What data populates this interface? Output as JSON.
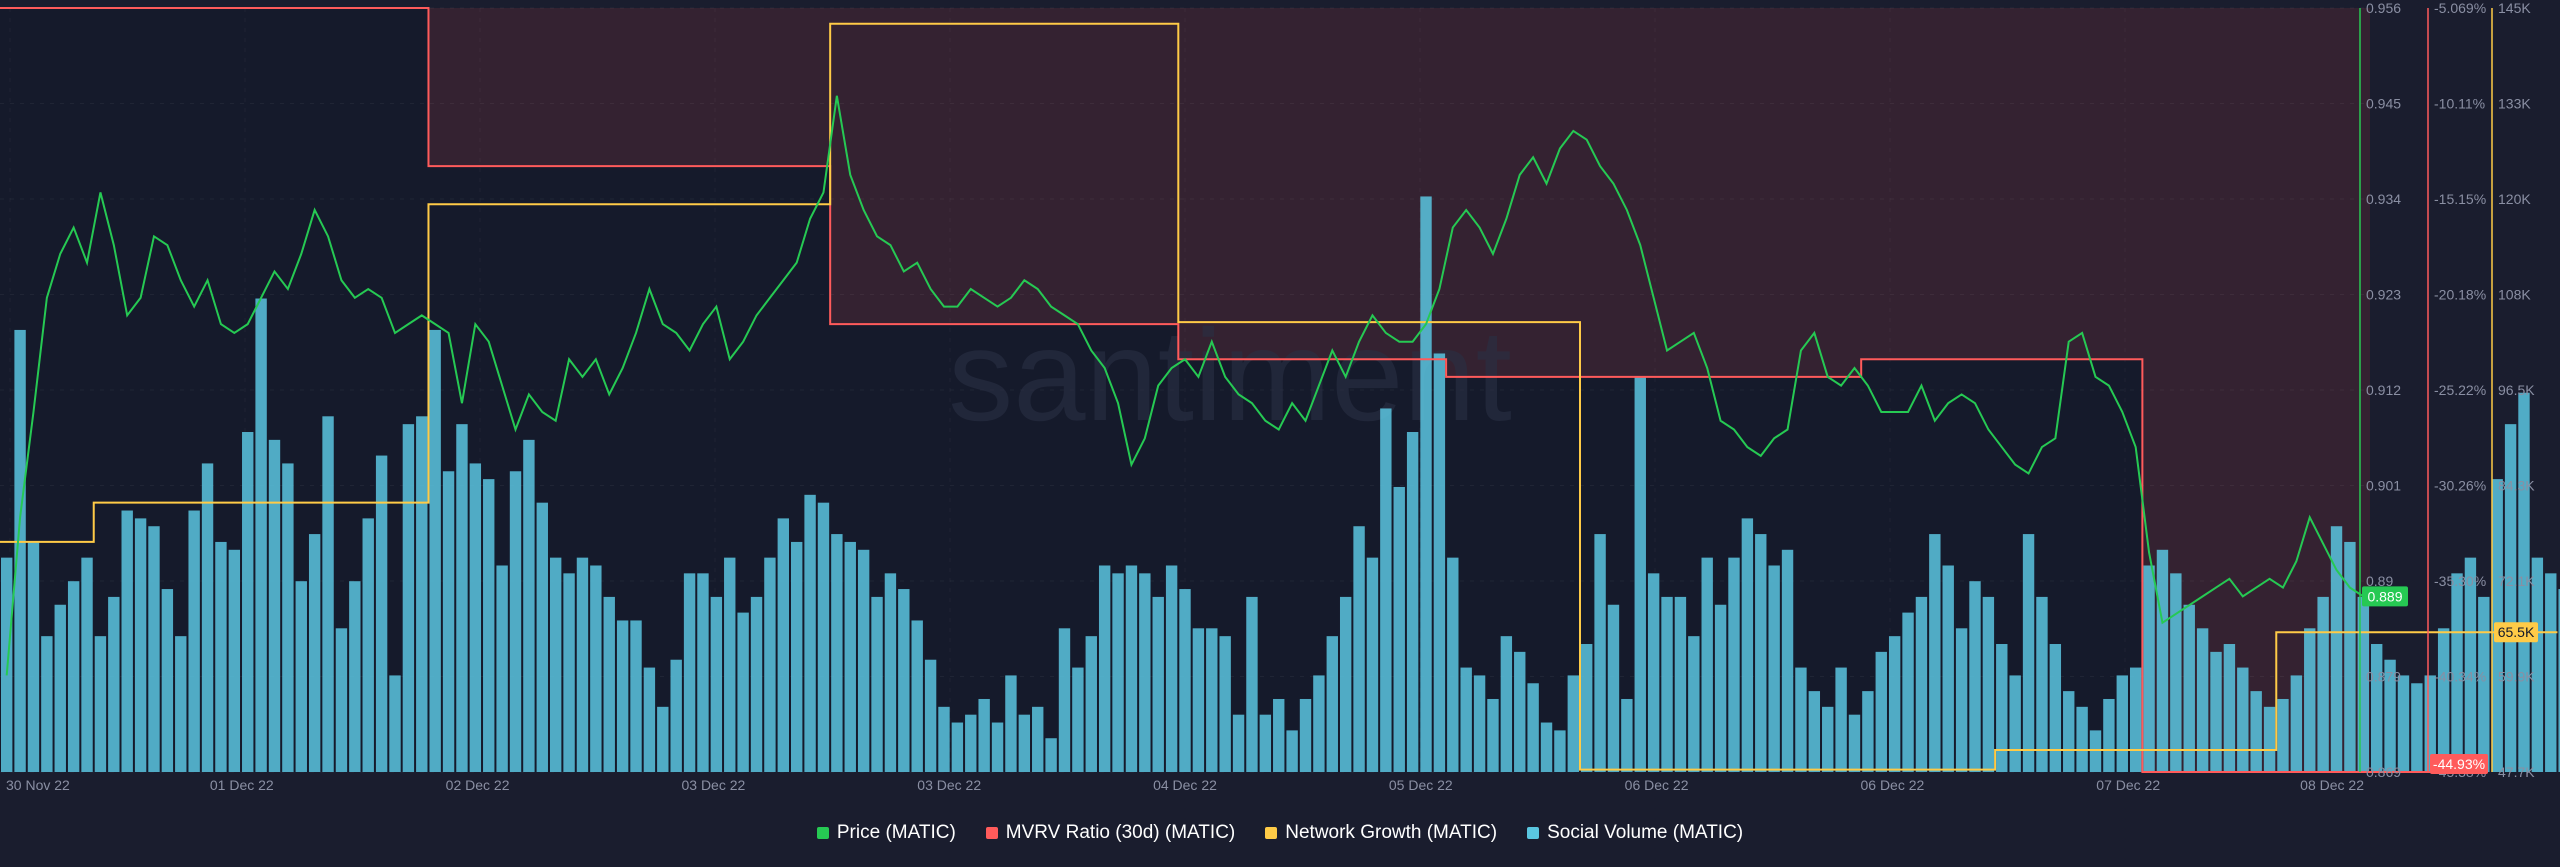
{
  "watermark": "santiment",
  "colors": {
    "background": "#1a1d2e",
    "plot_area": "#151a2b",
    "highlight": "#3a2533",
    "price": "#26c953",
    "mvrv": "#ff5b5b",
    "network": "#ffcb47",
    "social": "#5ac6e0",
    "axis_text": "#8a8fa3"
  },
  "chart_data": {
    "type": "line",
    "x_ticks": [
      "30 Nov 22",
      "01 Dec 22",
      "02 Dec 22",
      "03 Dec 22",
      "03 Dec 22",
      "04 Dec 22",
      "05 Dec 22",
      "06 Dec 22",
      "06 Dec 22",
      "07 Dec 22",
      "08 Dec 22"
    ],
    "axes": {
      "price": {
        "range": [
          0.869,
          0.956
        ],
        "ticks": [
          "0.956",
          "0.945",
          "0.934",
          "0.923",
          "0.912",
          "0.901",
          "0.89",
          "0.879",
          "0.869"
        ],
        "current_label": "0.889"
      },
      "mvrv": {
        "ticks": [
          "-5.069%",
          "-10.11%",
          "-15.15%",
          "-20.18%",
          "-25.22%",
          "-30.26%",
          "-35.30%",
          "-40.34%",
          "-45.38%"
        ],
        "current_label": "-44.93%"
      },
      "volume": {
        "range": [
          47700,
          145000
        ],
        "ticks": [
          "145K",
          "133K",
          "120K",
          "108K",
          "96.5K",
          "84.3K",
          "72.1K",
          "59.9K",
          "47.7K"
        ],
        "current_label": "65.5K"
      }
    },
    "series": [
      {
        "name": "Price (MATIC)",
        "type": "line",
        "axis": "price",
        "values": [
          0.88,
          0.898,
          0.91,
          0.923,
          0.928,
          0.931,
          0.927,
          0.935,
          0.929,
          0.921,
          0.923,
          0.93,
          0.929,
          0.925,
          0.922,
          0.925,
          0.92,
          0.919,
          0.92,
          0.923,
          0.926,
          0.924,
          0.928,
          0.933,
          0.93,
          0.925,
          0.923,
          0.924,
          0.923,
          0.919,
          0.92,
          0.921,
          0.92,
          0.919,
          0.911,
          0.92,
          0.918,
          0.913,
          0.908,
          0.912,
          0.91,
          0.909,
          0.916,
          0.914,
          0.916,
          0.912,
          0.915,
          0.919,
          0.924,
          0.92,
          0.919,
          0.917,
          0.92,
          0.922,
          0.916,
          0.918,
          0.921,
          0.923,
          0.925,
          0.927,
          0.932,
          0.935,
          0.946,
          0.937,
          0.933,
          0.93,
          0.929,
          0.926,
          0.927,
          0.924,
          0.922,
          0.922,
          0.924,
          0.923,
          0.922,
          0.923,
          0.925,
          0.924,
          0.922,
          0.921,
          0.92,
          0.917,
          0.915,
          0.911,
          0.904,
          0.907,
          0.913,
          0.915,
          0.916,
          0.914,
          0.918,
          0.914,
          0.912,
          0.911,
          0.909,
          0.908,
          0.911,
          0.909,
          0.913,
          0.917,
          0.914,
          0.918,
          0.921,
          0.919,
          0.918,
          0.918,
          0.92,
          0.924,
          0.931,
          0.933,
          0.931,
          0.928,
          0.932,
          0.937,
          0.939,
          0.936,
          0.94,
          0.942,
          0.941,
          0.938,
          0.936,
          0.933,
          0.929,
          0.923,
          0.917,
          0.918,
          0.919,
          0.915,
          0.909,
          0.908,
          0.906,
          0.905,
          0.907,
          0.908,
          0.917,
          0.919,
          0.914,
          0.913,
          0.915,
          0.913,
          0.91,
          0.91,
          0.91,
          0.913,
          0.909,
          0.911,
          0.912,
          0.911,
          0.908,
          0.906,
          0.904,
          0.903,
          0.906,
          0.907,
          0.918,
          0.919,
          0.914,
          0.913,
          0.91,
          0.906,
          0.894,
          0.886,
          0.887,
          0.888,
          0.889,
          0.89,
          0.891,
          0.889,
          0.89,
          0.891,
          0.89,
          0.893,
          0.898,
          0.895,
          0.892,
          0.89,
          0.889
        ]
      },
      {
        "name": "MVRV Ratio (30d) (MATIC)",
        "type": "step",
        "axis": "mvrv",
        "values": [
          0.956,
          0.956,
          0.956,
          0.956,
          0.956,
          0.956,
          0.956,
          0.956,
          0.956,
          0.956,
          0.956,
          0.956,
          0.956,
          0.956,
          0.956,
          0.956,
          0.956,
          0.956,
          0.956,
          0.956,
          0.956,
          0.956,
          0.956,
          0.956,
          0.956,
          0.956,
          0.956,
          0.956,
          0.956,
          0.956,
          0.956,
          0.956,
          0.938,
          0.938,
          0.938,
          0.938,
          0.938,
          0.938,
          0.938,
          0.938,
          0.938,
          0.938,
          0.938,
          0.938,
          0.938,
          0.938,
          0.938,
          0.938,
          0.938,
          0.938,
          0.938,
          0.938,
          0.938,
          0.938,
          0.938,
          0.938,
          0.938,
          0.938,
          0.938,
          0.938,
          0.938,
          0.938,
          0.92,
          0.92,
          0.92,
          0.92,
          0.92,
          0.92,
          0.92,
          0.92,
          0.92,
          0.92,
          0.92,
          0.92,
          0.92,
          0.92,
          0.92,
          0.92,
          0.92,
          0.92,
          0.92,
          0.92,
          0.92,
          0.92,
          0.92,
          0.92,
          0.92,
          0.92,
          0.916,
          0.916,
          0.916,
          0.916,
          0.916,
          0.916,
          0.916,
          0.916,
          0.916,
          0.916,
          0.916,
          0.916,
          0.916,
          0.916,
          0.916,
          0.916,
          0.916,
          0.916,
          0.916,
          0.916,
          0.914,
          0.914,
          0.914,
          0.914,
          0.914,
          0.914,
          0.914,
          0.914,
          0.914,
          0.914,
          0.914,
          0.914,
          0.914,
          0.914,
          0.914,
          0.914,
          0.914,
          0.914,
          0.914,
          0.914,
          0.914,
          0.914,
          0.914,
          0.914,
          0.914,
          0.914,
          0.914,
          0.914,
          0.914,
          0.914,
          0.914,
          0.916,
          0.916,
          0.916,
          0.916,
          0.916,
          0.916,
          0.916,
          0.916,
          0.916,
          0.916,
          0.916,
          0.916,
          0.916,
          0.916,
          0.916,
          0.916,
          0.916,
          0.916,
          0.916,
          0.916,
          0.916,
          0.869,
          0.869,
          0.869,
          0.869,
          0.869,
          0.869,
          0.869,
          0.869,
          0.869,
          0.869,
          0.869,
          0.869,
          0.869,
          0.869,
          0.869,
          0.869,
          0.869,
          0.869,
          0.869,
          0.869,
          0.869,
          0.869
        ]
      },
      {
        "name": "Network Growth (MATIC)",
        "type": "step",
        "axis": "volume",
        "values": [
          77000,
          77000,
          77000,
          77000,
          77000,
          77000,
          77000,
          82000,
          82000,
          82000,
          82000,
          82000,
          82000,
          82000,
          82000,
          82000,
          82000,
          82000,
          82000,
          82000,
          82000,
          82000,
          82000,
          82000,
          82000,
          82000,
          82000,
          82000,
          82000,
          82000,
          82000,
          82000,
          120000,
          120000,
          120000,
          120000,
          120000,
          120000,
          120000,
          120000,
          120000,
          120000,
          120000,
          120000,
          120000,
          120000,
          120000,
          120000,
          120000,
          120000,
          120000,
          120000,
          120000,
          120000,
          120000,
          120000,
          120000,
          120000,
          120000,
          120000,
          120000,
          120000,
          143000,
          143000,
          143000,
          143000,
          143000,
          143000,
          143000,
          143000,
          143000,
          143000,
          143000,
          143000,
          143000,
          143000,
          143000,
          143000,
          143000,
          143000,
          143000,
          143000,
          143000,
          143000,
          143000,
          143000,
          143000,
          143000,
          105000,
          105000,
          105000,
          105000,
          105000,
          105000,
          105000,
          105000,
          105000,
          105000,
          105000,
          105000,
          105000,
          105000,
          105000,
          105000,
          105000,
          105000,
          105000,
          105000,
          105000,
          105000,
          105000,
          105000,
          105000,
          105000,
          105000,
          105000,
          105000,
          105000,
          48000,
          48000,
          48000,
          48000,
          48000,
          48000,
          48000,
          48000,
          48000,
          48000,
          48000,
          48000,
          48000,
          48000,
          48000,
          48000,
          48000,
          48000,
          48000,
          48000,
          48000,
          48000,
          48000,
          48000,
          48000,
          48000,
          48000,
          48000,
          48000,
          48000,
          48000,
          50500,
          50500,
          50500,
          50500,
          50500,
          50500,
          50500,
          50500,
          50500,
          50500,
          50500,
          50500,
          50500,
          50500,
          50500,
          50500,
          50500,
          50500,
          50500,
          50500,
          50500,
          65500,
          65500,
          65500,
          65500,
          65500,
          65500,
          65500,
          65500,
          65500,
          65500,
          65500,
          65500,
          65500,
          65500,
          65500,
          65500,
          65500,
          65500,
          65500,
          65500,
          65500
        ]
      },
      {
        "name": "Social Volume (MATIC)",
        "type": "bar",
        "axis": "volume",
        "values": [
          75000,
          104000,
          77000,
          65000,
          69000,
          72000,
          75000,
          65000,
          70000,
          81000,
          80000,
          79000,
          71000,
          65000,
          81000,
          87000,
          77000,
          76000,
          91000,
          108000,
          90000,
          87000,
          72000,
          78000,
          93000,
          66000,
          72000,
          80000,
          88000,
          60000,
          92000,
          93000,
          104000,
          86000,
          92000,
          87000,
          85000,
          74000,
          86000,
          90000,
          82000,
          75000,
          73000,
          75000,
          74000,
          70000,
          67000,
          67000,
          61000,
          56000,
          62000,
          73000,
          73000,
          70000,
          75000,
          68000,
          70000,
          75000,
          80000,
          77000,
          83000,
          82000,
          78000,
          77000,
          76000,
          70000,
          73000,
          71000,
          67000,
          62000,
          56000,
          54000,
          55000,
          57000,
          54000,
          60000,
          55000,
          56000,
          52000,
          66000,
          61000,
          65000,
          74000,
          73000,
          74000,
          73000,
          70000,
          74000,
          71000,
          66000,
          66000,
          65000,
          55000,
          70000,
          55000,
          57000,
          53000,
          57000,
          60000,
          65000,
          70000,
          79000,
          75000,
          94000,
          84000,
          91000,
          121000,
          101000,
          75000,
          61000,
          60000,
          57000,
          65000,
          63000,
          59000,
          54000,
          53000,
          60000,
          64000,
          78000,
          69000,
          57000,
          98000,
          73000,
          70000,
          70000,
          65000,
          75000,
          69000,
          75000,
          80000,
          78000,
          74000,
          76000,
          61000,
          58000,
          56000,
          61000,
          55000,
          58000,
          63000,
          65000,
          68000,
          70000,
          78000,
          74000,
          66000,
          72000,
          70000,
          64000,
          60000,
          78000,
          70000,
          64000,
          58000,
          56000,
          53000,
          57000,
          60000,
          61000,
          74000,
          76000,
          73000,
          69000,
          66000,
          63000,
          64000,
          61000,
          58000,
          56000,
          57000,
          60000,
          66000,
          70000,
          79000,
          77000,
          70000,
          64000,
          62000,
          60000,
          59000,
          60000,
          66000,
          73000,
          75000,
          70000,
          85000,
          92000,
          96000,
          75000,
          73000,
          71000,
          61000,
          59000,
          60000,
          55000,
          56000,
          57000,
          58000,
          59000,
          60000
        ]
      }
    ]
  },
  "legend": [
    {
      "label": "Price (MATIC)",
      "color": "#26c953"
    },
    {
      "label": "MVRV Ratio (30d) (MATIC)",
      "color": "#ff5b5b"
    },
    {
      "label": "Network Growth (MATIC)",
      "color": "#ffcb47"
    },
    {
      "label": "Social Volume (MATIC)",
      "color": "#5ac6e0"
    }
  ]
}
